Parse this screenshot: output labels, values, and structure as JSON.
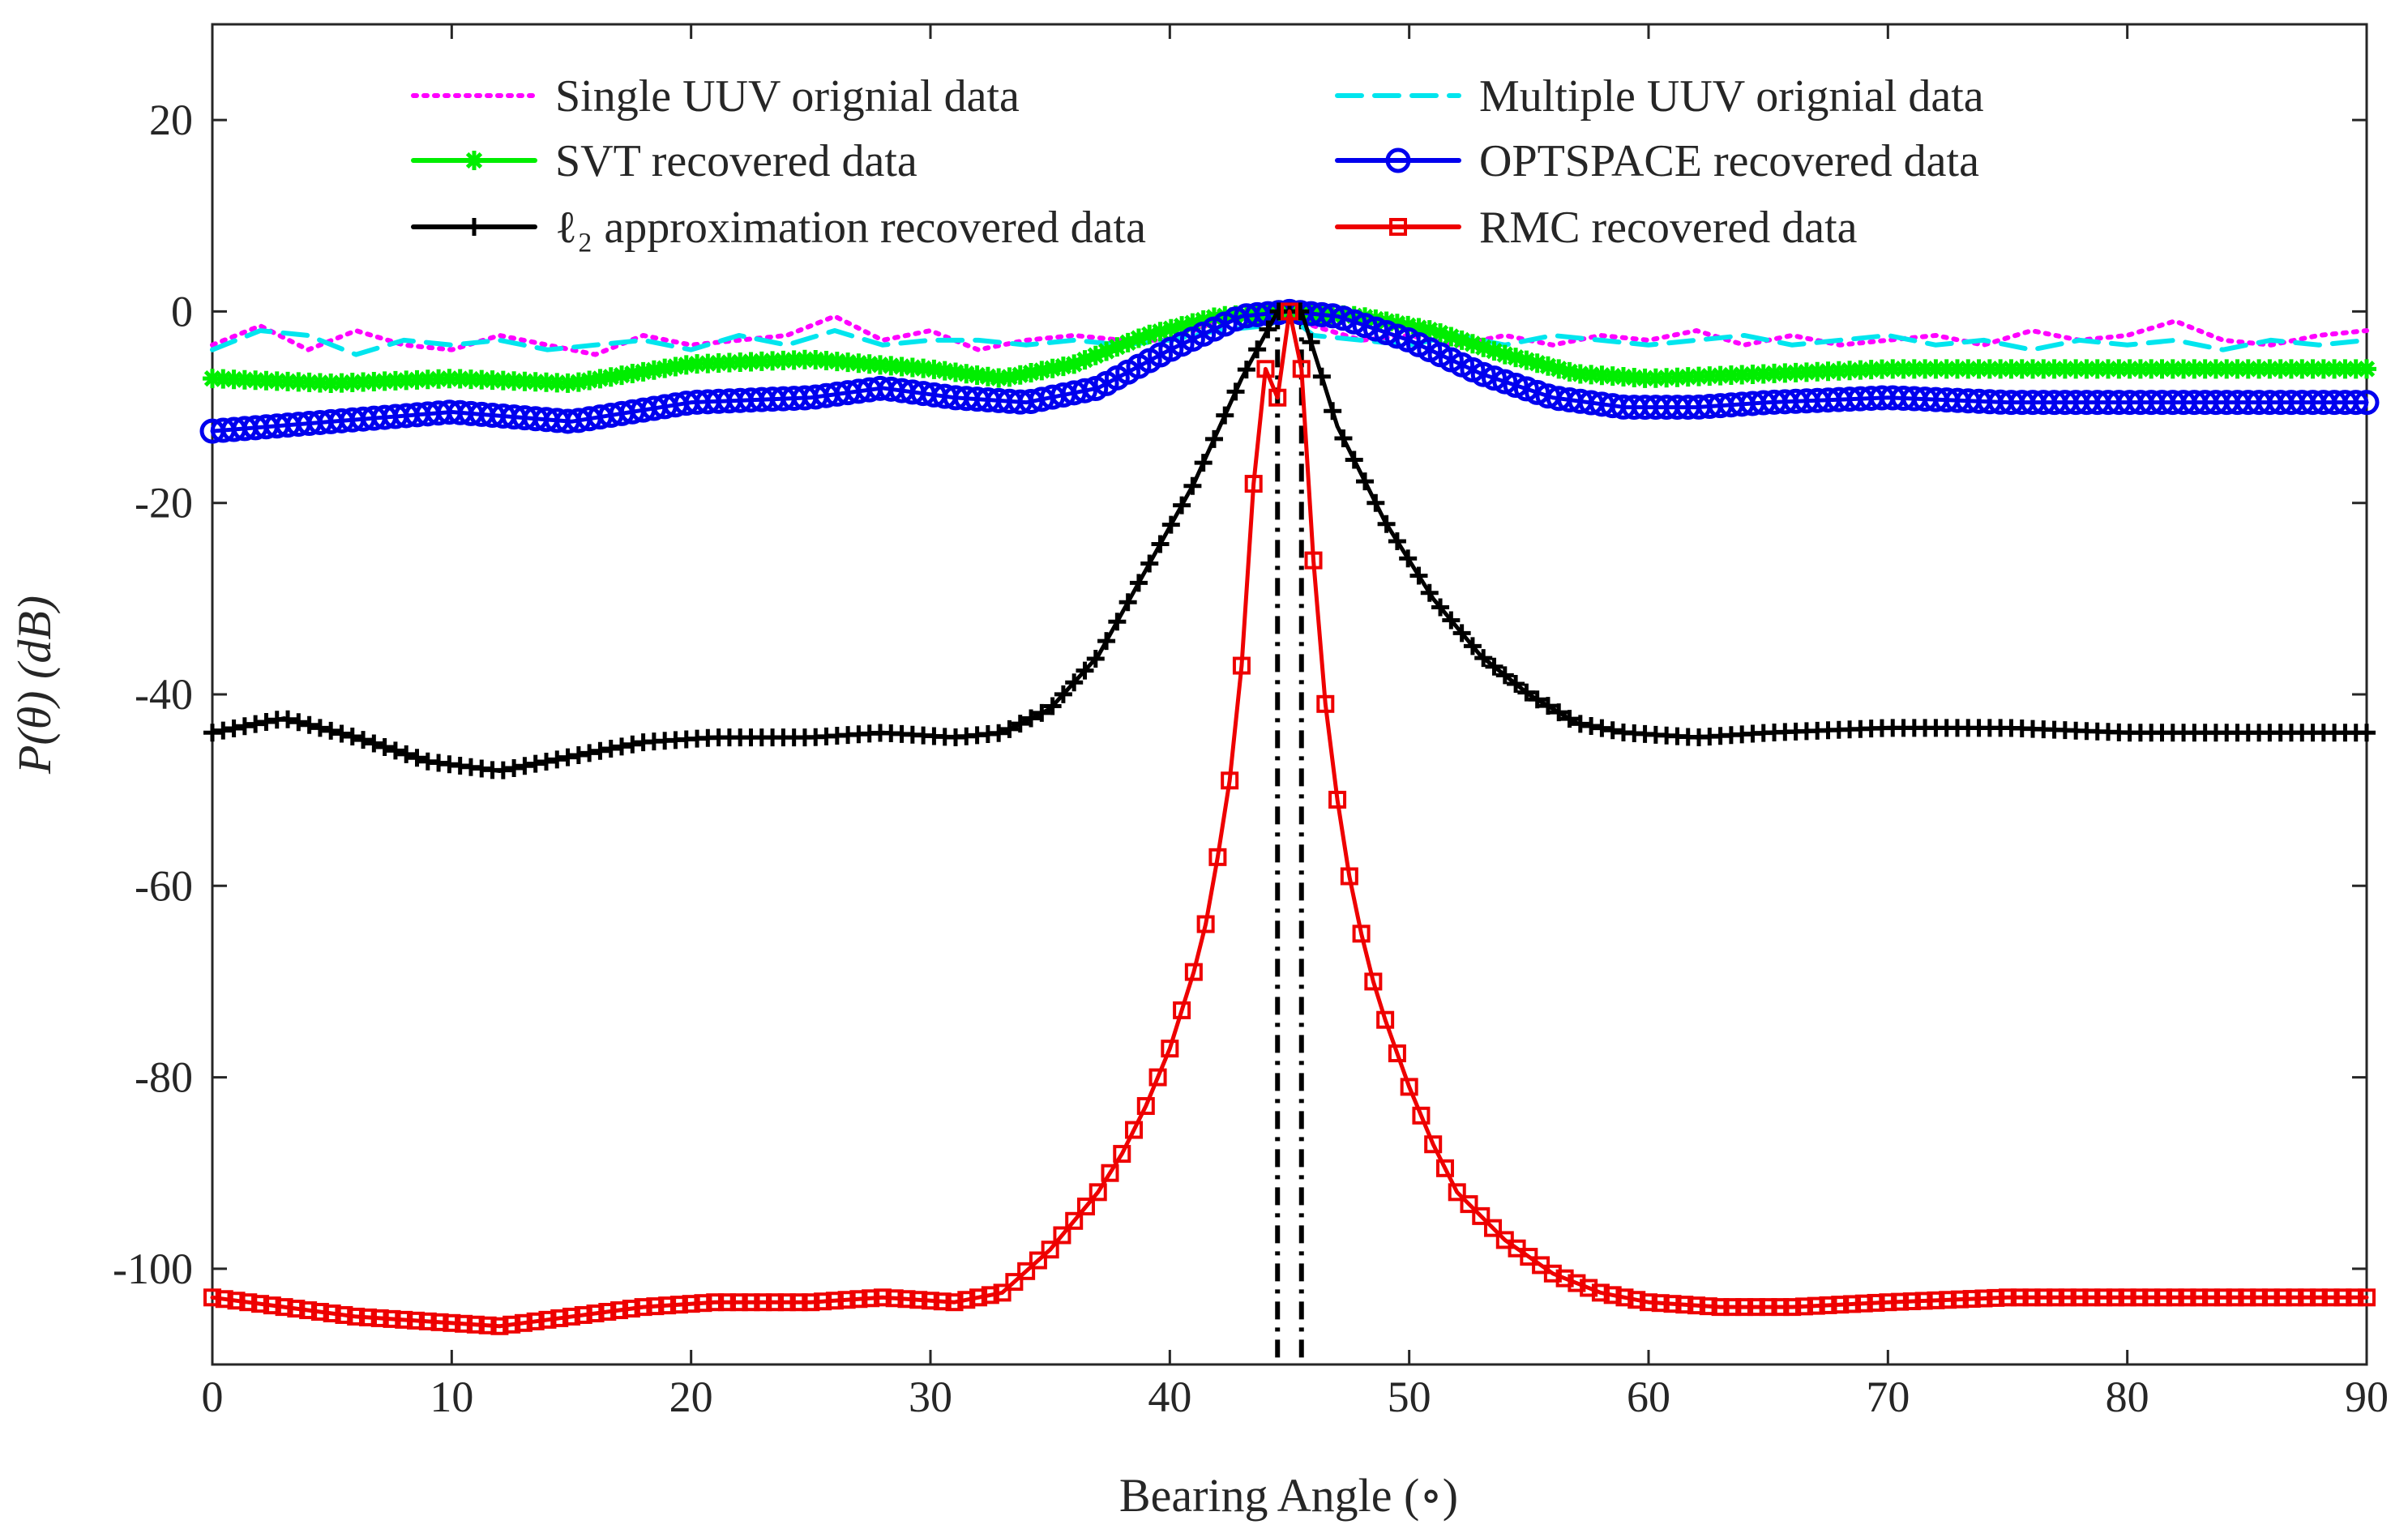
{
  "chart_data": {
    "type": "line",
    "title": "",
    "xlabel": "Bearing Angle (∘)",
    "ylabel": "P(θ) (dB)",
    "xlim": [
      0,
      90
    ],
    "ylim": [
      -110,
      30
    ],
    "xticks": [
      0,
      10,
      20,
      30,
      40,
      50,
      60,
      70,
      80,
      90
    ],
    "yticks": [
      20,
      0,
      -20,
      -40,
      -60,
      -80,
      -100
    ],
    "ytick_labels": [
      "20",
      "0",
      "-20",
      "-40",
      "-60",
      "-80",
      "-100"
    ],
    "legend_position": "top, two columns",
    "vertical_lines": [
      44.5,
      45.5
    ],
    "series": [
      {
        "name": "Single UUV orignial data",
        "color": "#ff00ff",
        "style": "dotted",
        "marker": "none",
        "x": [
          0,
          2,
          4,
          6,
          8,
          10,
          12,
          14,
          16,
          18,
          20,
          22,
          24,
          26,
          28,
          30,
          32,
          34,
          36,
          38,
          40,
          42,
          44,
          45,
          46,
          48,
          50,
          52,
          54,
          56,
          58,
          60,
          62,
          64,
          66,
          68,
          70,
          72,
          74,
          76,
          78,
          80,
          82,
          84,
          86,
          88,
          90
        ],
        "values": [
          -3.5,
          -1.5,
          -4.0,
          -2.0,
          -3.5,
          -4.0,
          -2.5,
          -3.5,
          -4.5,
          -2.5,
          -3.5,
          -3.0,
          -2.5,
          -0.5,
          -3.0,
          -2.0,
          -4.0,
          -3.0,
          -2.5,
          -3.0,
          -3.0,
          -1.0,
          -0.5,
          0.0,
          -1.5,
          -3.0,
          -2.5,
          -3.5,
          -2.5,
          -3.5,
          -2.5,
          -3.0,
          -2.0,
          -3.5,
          -2.5,
          -3.5,
          -3.0,
          -2.5,
          -3.5,
          -2.0,
          -3.0,
          -2.5,
          -1.0,
          -3.0,
          -3.5,
          -2.5,
          -2.0
        ]
      },
      {
        "name": "Multiple UUV orignial data",
        "color": "#00e5ee",
        "style": "dashed",
        "marker": "none",
        "x": [
          0,
          2,
          4,
          6,
          8,
          10,
          12,
          14,
          16,
          18,
          20,
          22,
          24,
          26,
          28,
          30,
          32,
          34,
          36,
          38,
          40,
          42,
          44,
          45,
          46,
          48,
          50,
          52,
          54,
          56,
          58,
          60,
          62,
          64,
          66,
          68,
          70,
          72,
          74,
          76,
          78,
          80,
          82,
          84,
          86,
          88,
          90
        ],
        "values": [
          -4.0,
          -2.0,
          -2.5,
          -4.5,
          -3.0,
          -3.5,
          -3.0,
          -4.0,
          -3.5,
          -3.0,
          -4.0,
          -2.5,
          -3.5,
          -2.0,
          -3.5,
          -3.0,
          -3.0,
          -3.5,
          -3.0,
          -3.5,
          -3.0,
          -2.0,
          -1.5,
          -0.5,
          -2.5,
          -3.0,
          -3.5,
          -2.5,
          -3.5,
          -2.5,
          -3.0,
          -3.5,
          -3.0,
          -2.5,
          -3.5,
          -3.0,
          -2.5,
          -3.5,
          -3.0,
          -4.0,
          -3.0,
          -3.5,
          -3.0,
          -4.0,
          -3.0,
          -3.5,
          -3.0
        ]
      },
      {
        "name": "SVT recovered data",
        "color": "#00ee00",
        "style": "solid",
        "marker": "asterisk",
        "x": [
          0,
          5,
          10,
          15,
          20,
          25,
          30,
          33,
          36,
          39,
          42,
          45,
          48,
          51,
          54,
          57,
          60,
          65,
          70,
          75,
          80,
          85,
          90
        ],
        "values": [
          -7.0,
          -7.5,
          -7.0,
          -7.5,
          -5.5,
          -5.0,
          -6.0,
          -7.0,
          -5.5,
          -2.5,
          -0.5,
          0.0,
          -0.5,
          -2.0,
          -4.5,
          -6.5,
          -7.0,
          -6.5,
          -6.0,
          -6.0,
          -6.0,
          -6.0,
          -6.0
        ]
      },
      {
        "name": "OPTSPACE recovered data",
        "color": "#0000ee",
        "style": "solid",
        "marker": "circle",
        "x": [
          0,
          5,
          10,
          15,
          20,
          25,
          28,
          31,
          34,
          37,
          40,
          43,
          45,
          47,
          50,
          53,
          56,
          59,
          62,
          65,
          70,
          75,
          80,
          85,
          90
        ],
        "values": [
          -12.5,
          -11.5,
          -10.5,
          -11.5,
          -9.5,
          -9.0,
          -8.0,
          -9.0,
          -9.5,
          -8.0,
          -4.0,
          -0.5,
          0.0,
          -0.5,
          -3.0,
          -6.5,
          -9.0,
          -10.0,
          -10.0,
          -9.5,
          -9.0,
          -9.5,
          -9.5,
          -9.5,
          -9.5
        ]
      },
      {
        "name": "ℓ₂ approximation recovered data",
        "color": "#000000",
        "style": "solid",
        "marker": "plus",
        "x": [
          0,
          3,
          6,
          9,
          12,
          15,
          18,
          21,
          25,
          28,
          31,
          33,
          35,
          37,
          39,
          41,
          43,
          44.5,
          45.5,
          47,
          49,
          51,
          53,
          55,
          57,
          59,
          62,
          65,
          70,
          75,
          80,
          85,
          90
        ],
        "values": [
          -44.0,
          -42.5,
          -44.5,
          -47.0,
          -48.0,
          -46.5,
          -45.0,
          -44.5,
          -44.5,
          -44.0,
          -44.5,
          -44.0,
          -41.5,
          -36.0,
          -27.0,
          -18.0,
          -7.0,
          0.0,
          0.0,
          -12.0,
          -22.0,
          -30.0,
          -36.0,
          -40.0,
          -43.0,
          -44.0,
          -44.5,
          -44.0,
          -43.5,
          -43.5,
          -44.0,
          -44.0,
          -44.0
        ]
      },
      {
        "name": "RMC recovered data",
        "color": "#ee0000",
        "style": "solid",
        "marker": "square",
        "x": [
          0,
          3,
          6,
          9,
          12,
          15,
          18,
          21,
          25,
          28,
          31,
          33,
          35,
          37,
          38,
          39,
          40,
          41,
          41.5,
          42,
          42.5,
          43,
          43.5,
          44,
          44.5,
          45,
          45.5,
          46,
          46.5,
          47,
          47.5,
          48,
          48.5,
          49,
          50,
          51,
          52,
          54,
          56,
          58,
          60,
          63,
          66,
          70,
          75,
          80,
          85,
          90
        ],
        "values": [
          -103.0,
          -104.0,
          -105.0,
          -105.5,
          -106.0,
          -105.0,
          -104.0,
          -103.5,
          -103.5,
          -103.0,
          -103.5,
          -102.5,
          -98.0,
          -92.0,
          -88.0,
          -83.0,
          -77.0,
          -69.0,
          -64.0,
          -57.0,
          -49.0,
          -37.0,
          -18.0,
          -6.0,
          -9.0,
          0.0,
          -6.0,
          -26.0,
          -41.0,
          -51.0,
          -59.0,
          -65.0,
          -70.0,
          -74.0,
          -81.0,
          -87.0,
          -92.0,
          -97.0,
          -100.5,
          -102.5,
          -103.5,
          -104.0,
          -104.0,
          -103.5,
          -103.0,
          -103.0,
          -103.0,
          -103.0
        ]
      }
    ]
  }
}
